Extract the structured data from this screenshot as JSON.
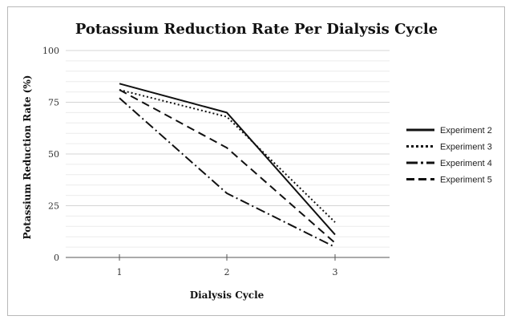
{
  "chart_data": {
    "type": "line",
    "title": "Potassium Reduction Rate Per Dialysis Cycle",
    "xlabel": "Dialysis Cycle",
    "ylabel": "Potassium Reduction Rate (%)",
    "x": [
      1,
      2,
      3
    ],
    "x_tick_labels": [
      "1",
      "2",
      "3"
    ],
    "ylim": [
      0,
      100
    ],
    "y_ticks": [
      0,
      25,
      50,
      75,
      100
    ],
    "grid": true,
    "legend_position": "right",
    "series": [
      {
        "name": "Experiment 2",
        "values": [
          84,
          70,
          11
        ],
        "dash": "solid"
      },
      {
        "name": "Experiment 3",
        "values": [
          81,
          68,
          17
        ],
        "dash": "dotted"
      },
      {
        "name": "Experiment 4",
        "values": [
          77,
          31,
          5
        ],
        "dash": "dash-dot"
      },
      {
        "name": "Experiment 5",
        "values": [
          81,
          53,
          7
        ],
        "dash": "dashed"
      }
    ]
  }
}
